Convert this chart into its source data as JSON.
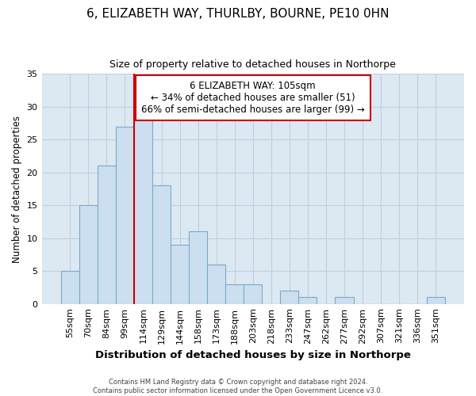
{
  "title": "6, ELIZABETH WAY, THURLBY, BOURNE, PE10 0HN",
  "subtitle": "Size of property relative to detached houses in Northorpe",
  "xlabel": "Distribution of detached houses by size in Northorpe",
  "ylabel": "Number of detached properties",
  "bar_labels": [
    "55sqm",
    "70sqm",
    "84sqm",
    "99sqm",
    "114sqm",
    "129sqm",
    "144sqm",
    "158sqm",
    "173sqm",
    "188sqm",
    "203sqm",
    "218sqm",
    "233sqm",
    "247sqm",
    "262sqm",
    "277sqm",
    "292sqm",
    "307sqm",
    "321sqm",
    "336sqm",
    "351sqm"
  ],
  "bar_values": [
    5,
    15,
    21,
    27,
    28,
    18,
    9,
    11,
    6,
    3,
    3,
    0,
    2,
    1,
    0,
    1,
    0,
    0,
    0,
    0,
    1
  ],
  "bar_color": "#ccdff0",
  "bar_edgecolor": "#7aaac8",
  "ylim": [
    0,
    35
  ],
  "yticks": [
    0,
    5,
    10,
    15,
    20,
    25,
    30,
    35
  ],
  "red_line_x": 3.5,
  "annotation_title": "6 ELIZABETH WAY: 105sqm",
  "annotation_line1": "← 34% of detached houses are smaller (51)",
  "annotation_line2": "66% of semi-detached houses are larger (99) →",
  "annotation_box_facecolor": "#ffffff",
  "annotation_box_edgecolor": "#cc0000",
  "red_line_color": "#cc0000",
  "footer1": "Contains HM Land Registry data © Crown copyright and database right 2024.",
  "footer2": "Contains public sector information licensed under the Open Government Licence v3.0.",
  "figure_facecolor": "#ffffff",
  "axes_facecolor": "#dce8f2",
  "grid_color": "#c0d0e0",
  "spine_color": "#aabbcc"
}
